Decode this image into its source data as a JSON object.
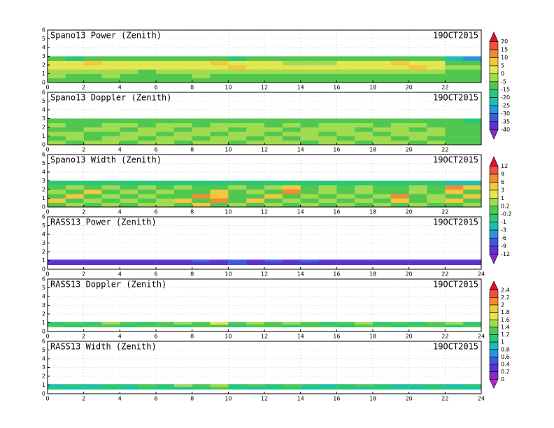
{
  "chart_data": [
    {
      "type": "heatmap",
      "title": "Spano13 Power (Zenith)",
      "date": "19OCT2015",
      "xlim": [
        0,
        24
      ],
      "ylim": [
        0,
        6
      ],
      "xticks": [
        0,
        2,
        4,
        6,
        8,
        10,
        12,
        14,
        16,
        18,
        20,
        22
      ],
      "yticks": [
        0,
        1,
        2,
        3,
        4,
        5,
        6
      ],
      "grid": true,
      "colorbar": {
        "levels": [
          20,
          15,
          10,
          5,
          0,
          -5,
          -15,
          -20,
          -25,
          -30,
          -35,
          -40
        ],
        "colors": [
          "#e0102f",
          "#f0503c",
          "#f08c32",
          "#f5c83c",
          "#e6e650",
          "#a0dc50",
          "#50c850",
          "#28c878",
          "#1ebeb4",
          "#2896dc",
          "#3c5adc",
          "#5a32d2",
          "#8c28c8"
        ]
      },
      "x_edges": [
        0,
        1,
        2,
        3,
        4,
        5,
        6,
        7,
        8,
        9,
        10,
        11,
        12,
        13,
        14,
        15,
        16,
        17,
        18,
        19,
        20,
        21,
        22,
        23,
        24
      ],
      "y_edges": [
        0,
        0.5,
        1,
        1.5,
        2,
        2.5,
        3
      ],
      "values": [
        [
          -10,
          -10,
          -15,
          -10,
          -10,
          -10,
          -15,
          -10,
          -10,
          -10,
          -10,
          -10,
          -10,
          -10,
          -10,
          -10,
          -10,
          -10,
          -10,
          -10,
          -10,
          -10,
          -15,
          -15
        ],
        [
          -5,
          -10,
          -10,
          -5,
          -10,
          -10,
          -10,
          -10,
          -5,
          -10,
          -10,
          -10,
          -10,
          -10,
          -10,
          -10,
          -10,
          -10,
          -10,
          -10,
          -10,
          -10,
          -15,
          -15
        ],
        [
          -5,
          -5,
          -5,
          -5,
          -5,
          -10,
          -5,
          -5,
          -5,
          -5,
          -5,
          -5,
          -5,
          -5,
          -5,
          -5,
          -5,
          -5,
          -5,
          -5,
          -5,
          -5,
          -10,
          -10
        ],
        [
          0,
          0,
          0,
          0,
          0,
          0,
          0,
          0,
          0,
          0,
          5,
          0,
          0,
          0,
          0,
          0,
          0,
          0,
          0,
          0,
          5,
          0,
          -5,
          -5
        ],
        [
          0,
          0,
          5,
          0,
          0,
          0,
          0,
          0,
          0,
          5,
          0,
          0,
          0,
          -5,
          -5,
          -5,
          0,
          0,
          0,
          5,
          0,
          0,
          -10,
          -10
        ],
        [
          -15,
          -20,
          -15,
          -15,
          -15,
          -15,
          -15,
          -15,
          -15,
          -15,
          -20,
          -15,
          -15,
          -15,
          -15,
          -15,
          -15,
          -15,
          -15,
          -15,
          -15,
          -15,
          -25,
          -30
        ]
      ]
    },
    {
      "type": "heatmap",
      "title": "Spano13 Doppler (Zenith)",
      "date": "19OCT2015",
      "xlim": [
        0,
        24
      ],
      "ylim": [
        0,
        6
      ],
      "xticks": [
        0,
        2,
        4,
        6,
        8,
        10,
        12,
        14,
        16,
        18,
        20,
        22
      ],
      "yticks": [
        0,
        1,
        2,
        3,
        4,
        5,
        6
      ],
      "grid": true,
      "x_edges": [
        0,
        1,
        2,
        3,
        4,
        5,
        6,
        7,
        8,
        9,
        10,
        11,
        12,
        13,
        14,
        15,
        16,
        17,
        18,
        19,
        20,
        21,
        22,
        23,
        24
      ],
      "y_edges": [
        0,
        0.5,
        1,
        1.5,
        2,
        2.5,
        3
      ],
      "values": [
        [
          -5,
          -10,
          -5,
          -5,
          -10,
          -5,
          -5,
          -10,
          -5,
          -5,
          -10,
          -5,
          -5,
          -5,
          -10,
          -5,
          -5,
          -10,
          -5,
          -5,
          -10,
          -5,
          -15,
          -10
        ],
        [
          -10,
          -5,
          -10,
          -5,
          -5,
          -10,
          -5,
          -5,
          -10,
          -5,
          -5,
          -10,
          -5,
          -10,
          -5,
          -5,
          -10,
          -5,
          -5,
          -10,
          -5,
          -10,
          -10,
          -15
        ],
        [
          -5,
          -5,
          -10,
          -10,
          -5,
          -5,
          -10,
          -5,
          -5,
          -10,
          -5,
          -5,
          -10,
          -5,
          -5,
          -10,
          -5,
          -5,
          -10,
          -5,
          -5,
          -5,
          -15,
          -10
        ],
        [
          -10,
          -10,
          -5,
          -5,
          -10,
          -5,
          -5,
          -10,
          -5,
          -5,
          -10,
          -5,
          -5,
          -10,
          -5,
          -5,
          -5,
          -10,
          -5,
          -5,
          -10,
          -5,
          -10,
          -15
        ],
        [
          -5,
          -10,
          -10,
          -5,
          -5,
          -10,
          -5,
          -5,
          -10,
          -5,
          -5,
          -5,
          -10,
          -5,
          -10,
          -5,
          -5,
          -5,
          -10,
          -5,
          -5,
          -10,
          -15,
          -15
        ],
        [
          -15,
          -10,
          -15,
          -15,
          -15,
          -10,
          -15,
          -10,
          -15,
          -15,
          -10,
          -15,
          -15,
          -15,
          -15,
          -10,
          -15,
          -15,
          -15,
          -15,
          -15,
          -10,
          -15,
          -20
        ]
      ]
    },
    {
      "type": "heatmap",
      "title": "Spano13 Width (Zenith)",
      "date": "19OCT2015",
      "xlim": [
        0,
        24
      ],
      "ylim": [
        0,
        6
      ],
      "xticks": [
        0,
        2,
        4,
        6,
        8,
        10,
        12,
        14,
        16,
        18,
        20,
        22
      ],
      "yticks": [
        0,
        1,
        2,
        3,
        4,
        5,
        6
      ],
      "grid": true,
      "colorbar": {
        "levels": [
          12,
          9,
          6,
          3,
          1,
          0.2,
          -0.2,
          -1,
          -3,
          -6,
          -9,
          -12
        ],
        "colors": [
          "#e0102f",
          "#f0503c",
          "#f08c32",
          "#f5c83c",
          "#e6e650",
          "#a0dc50",
          "#50c850",
          "#28c878",
          "#1ebeb4",
          "#2896dc",
          "#3c5adc",
          "#5a32d2",
          "#8c28c8"
        ]
      },
      "x_edges": [
        0,
        1,
        2,
        3,
        4,
        5,
        6,
        7,
        8,
        9,
        10,
        11,
        12,
        13,
        14,
        15,
        16,
        17,
        18,
        19,
        20,
        21,
        22,
        23,
        24
      ],
      "y_edges": [
        0,
        0.5,
        1,
        1.5,
        2,
        2.5,
        3
      ],
      "values": [
        [
          0,
          0.2,
          0,
          0.2,
          0,
          0.2,
          0.2,
          0,
          3,
          0,
          0.2,
          0,
          0.2,
          0,
          0.2,
          0,
          0.2,
          0,
          0.2,
          0,
          0.2,
          0,
          0,
          0.2
        ],
        [
          3,
          0,
          0.2,
          0,
          0.2,
          0,
          0.2,
          3,
          0,
          6,
          0,
          3,
          0,
          0.2,
          0,
          0.2,
          0,
          0.2,
          0,
          3,
          0,
          0.2,
          3,
          0
        ],
        [
          0,
          3,
          0,
          0.2,
          0,
          0.2,
          0,
          0,
          6,
          3,
          0,
          0,
          3,
          0,
          0.2,
          0,
          0.2,
          0,
          0.2,
          6,
          0,
          0.2,
          0,
          3
        ],
        [
          0.2,
          0,
          3,
          0,
          0.2,
          0,
          0.2,
          0,
          0,
          3,
          0,
          0.2,
          0,
          6,
          0,
          0.2,
          0,
          0.2,
          0,
          0,
          0.2,
          0,
          3,
          0
        ],
        [
          0,
          0.2,
          0,
          0.2,
          0,
          0.2,
          0,
          0.2,
          0,
          0,
          0.2,
          0,
          0.2,
          3,
          0,
          0.2,
          0,
          0.2,
          0,
          0,
          0.2,
          0,
          6,
          3
        ],
        [
          -1,
          -1,
          -1,
          -1,
          -1,
          -1,
          -1,
          -1,
          -1,
          -1,
          -1,
          -1,
          -1,
          -1,
          -1,
          -1,
          -1,
          -1,
          -1,
          -1,
          -1,
          -1,
          -3,
          -3
        ]
      ]
    },
    {
      "type": "heatmap",
      "title": "RASS13 Power (Zenith)",
      "date": "19OCT2015",
      "xlim": [
        0,
        24
      ],
      "ylim": [
        0,
        6
      ],
      "xticks": [
        0,
        2,
        4,
        6,
        8,
        10,
        12,
        14,
        16,
        18,
        20,
        22,
        24
      ],
      "yticks": [
        0,
        1,
        2,
        3,
        4,
        5,
        6
      ],
      "grid": true,
      "x_edges": [
        0,
        1,
        2,
        3,
        4,
        5,
        6,
        7,
        8,
        9,
        10,
        11,
        12,
        13,
        14,
        15,
        16,
        17,
        18,
        19,
        20,
        21,
        22,
        23,
        24
      ],
      "y_edges": [
        0.5,
        0.8,
        1.1
      ],
      "values": [
        [
          -12,
          -12,
          -12,
          -12,
          -12,
          -12,
          -12,
          -12,
          -12,
          -12,
          -9,
          -12,
          -12,
          -12,
          -12,
          -12,
          -12,
          -12,
          -12,
          -12,
          -12,
          -12,
          -12,
          -12
        ],
        [
          -12,
          -12,
          -12,
          -12,
          -12,
          -12,
          -12,
          -12,
          -9,
          -12,
          -9,
          -12,
          -9,
          -12,
          -9,
          -12,
          -12,
          -12,
          -12,
          -12,
          -12,
          -12,
          -12,
          -12
        ]
      ]
    },
    {
      "type": "heatmap",
      "title": "RASS13 Doppler (Zenith)",
      "date": "19OCT2015",
      "xlim": [
        0,
        24
      ],
      "ylim": [
        0,
        6
      ],
      "xticks": [
        0,
        2,
        4,
        6,
        8,
        10,
        12,
        14,
        16,
        18,
        20,
        22,
        24
      ],
      "yticks": [
        0,
        1,
        2,
        3,
        4,
        5,
        6
      ],
      "grid": true,
      "colorbar": {
        "levels": [
          2.4,
          2.2,
          2,
          1.8,
          1.6,
          1.4,
          1.2,
          1,
          0.8,
          0.6,
          0.4,
          0.2,
          0
        ],
        "colors": [
          "#e0102f",
          "#f0503c",
          "#f08c32",
          "#f5c83c",
          "#e6e650",
          "#a0dc50",
          "#50c850",
          "#28c878",
          "#1ebeb4",
          "#2896dc",
          "#3c5adc",
          "#5a32d2",
          "#8c28c8",
          "#b428c8"
        ]
      },
      "x_edges": [
        0,
        1,
        2,
        3,
        4,
        5,
        6,
        7,
        8,
        9,
        10,
        11,
        12,
        13,
        14,
        15,
        16,
        17,
        18,
        19,
        20,
        21,
        22,
        23,
        24
      ],
      "y_edges": [
        0.5,
        0.8,
        1.1
      ],
      "values": [
        [
          1.2,
          1,
          1.2,
          1.2,
          1,
          1.2,
          1.2,
          1,
          1.2,
          1.2,
          1,
          1.2,
          1.2,
          1,
          1.2,
          1.2,
          1,
          1.2,
          1.2,
          1,
          1.2,
          1.2,
          1,
          1.2
        ],
        [
          1,
          1.2,
          1,
          1.4,
          1.2,
          1,
          1.2,
          1.4,
          1.2,
          1.6,
          1.2,
          1.4,
          1.2,
          1.4,
          1.2,
          1,
          1.2,
          1.4,
          1,
          1.2,
          1,
          1.2,
          1.4,
          1
        ]
      ]
    },
    {
      "type": "heatmap",
      "title": "RASS13 Width (Zenith)",
      "date": "19OCT2015",
      "xlim": [
        0,
        24
      ],
      "ylim": [
        0,
        6
      ],
      "xticks": [
        0,
        2,
        4,
        6,
        8,
        10,
        12,
        14,
        16,
        18,
        20,
        22,
        24
      ],
      "yticks": [
        0,
        1,
        2,
        3,
        4,
        5,
        6
      ],
      "grid": true,
      "x_edges": [
        0,
        1,
        2,
        3,
        4,
        5,
        6,
        7,
        8,
        9,
        10,
        11,
        12,
        13,
        14,
        15,
        16,
        17,
        18,
        19,
        20,
        21,
        22,
        23,
        24
      ],
      "y_edges": [
        0.5,
        0.8,
        1.1
      ],
      "values": [
        [
          1,
          0.8,
          1,
          1,
          0.8,
          1,
          1,
          0.8,
          1,
          1.2,
          1,
          0.8,
          1,
          1,
          0.8,
          1,
          1,
          0.8,
          1,
          1,
          0.8,
          1,
          1,
          0.8
        ],
        [
          0.8,
          1,
          0.8,
          1,
          1,
          1.2,
          1,
          1.4,
          1.2,
          1.4,
          1,
          1.2,
          1,
          1.2,
          1,
          0.8,
          1,
          1.2,
          1,
          0.8,
          1,
          1,
          0.8,
          1
        ]
      ]
    }
  ]
}
